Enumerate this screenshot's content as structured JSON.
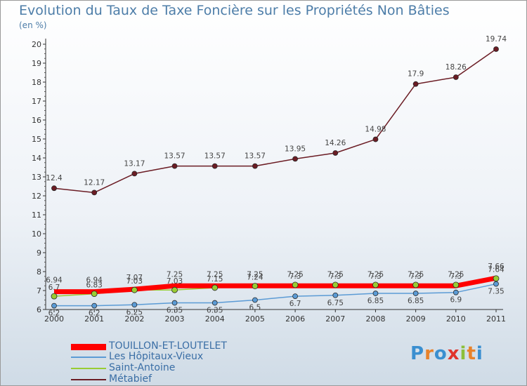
{
  "title": "Evolution du Taux de Taxe Foncière sur les Propriétés Non Bâties",
  "unit_label": "(en %)",
  "logo": [
    "P",
    "r",
    "o",
    "x",
    "i",
    "t",
    "i"
  ],
  "legend": [
    "TOUILLON-ET-LOUTELET",
    "Les Hôpitaux-Vieux",
    "Saint-Antoine",
    "Métabief"
  ],
  "chart_data": {
    "type": "line",
    "title": "Evolution du Taux de Taxe Foncière sur les Propriétés Non Bâties",
    "ylabel": "(en %)",
    "xlabel": "",
    "x": [
      "2000",
      "2001",
      "2002",
      "2003",
      "2004",
      "2005",
      "2006",
      "2007",
      "2008",
      "2009",
      "2010",
      "2011"
    ],
    "ylim": [
      6,
      20
    ],
    "yticks": [
      6,
      7,
      8,
      9,
      10,
      11,
      12,
      13,
      14,
      15,
      16,
      17,
      18,
      19,
      20
    ],
    "grid": false,
    "legend_position": "bottom-left",
    "series": [
      {
        "name": "Métabief",
        "color": "#6b1c24",
        "values": [
          12.4,
          12.17,
          13.17,
          13.57,
          13.57,
          13.57,
          13.95,
          14.26,
          14.98,
          17.9,
          18.26,
          19.74
        ],
        "labels": [
          "12.4",
          "12.17",
          "13.17",
          "13.57",
          "13.57",
          "13.57",
          "13.95",
          "14.26",
          "14.98",
          "17.9",
          "18.26",
          "19.74"
        ]
      },
      {
        "name": "Les Hôpitaux-Vieux",
        "color": "#5b9bd5",
        "values": [
          6.2,
          6.2,
          6.25,
          6.35,
          6.35,
          6.5,
          6.7,
          6.75,
          6.85,
          6.85,
          6.9,
          7.35
        ],
        "labels": [
          "6.2",
          "6.2",
          "6.25",
          "6.35",
          "6.35",
          "6.5",
          "6.7",
          "6.75",
          "6.85",
          "6.85",
          "6.9",
          "7.35"
        ]
      },
      {
        "name": "Saint-Antoine",
        "color": "#99cc33",
        "values": [
          6.7,
          6.83,
          7.03,
          7.03,
          7.15,
          7.24,
          7.3,
          7.3,
          7.3,
          7.3,
          7.3,
          7.64
        ],
        "labels": [
          "6.7",
          "6.83",
          "7.03",
          "7.03",
          "7.15",
          "7.24",
          "7.3",
          "7.3",
          "7.3",
          "7.3",
          "7.3",
          "7.64"
        ]
      },
      {
        "name": "TOUILLON-ET-LOUTELET",
        "color": "#ff0000",
        "values": [
          6.94,
          6.94,
          7.07,
          7.25,
          7.25,
          7.25,
          7.25,
          7.25,
          7.25,
          7.25,
          7.25,
          7.66
        ],
        "labels": [
          "6.94",
          "6.94",
          "7.07",
          "7.25",
          "7.25",
          "7.25",
          "7.25",
          "7.25",
          "7.25",
          "7.25",
          "7.25",
          "7.66"
        ]
      }
    ]
  }
}
